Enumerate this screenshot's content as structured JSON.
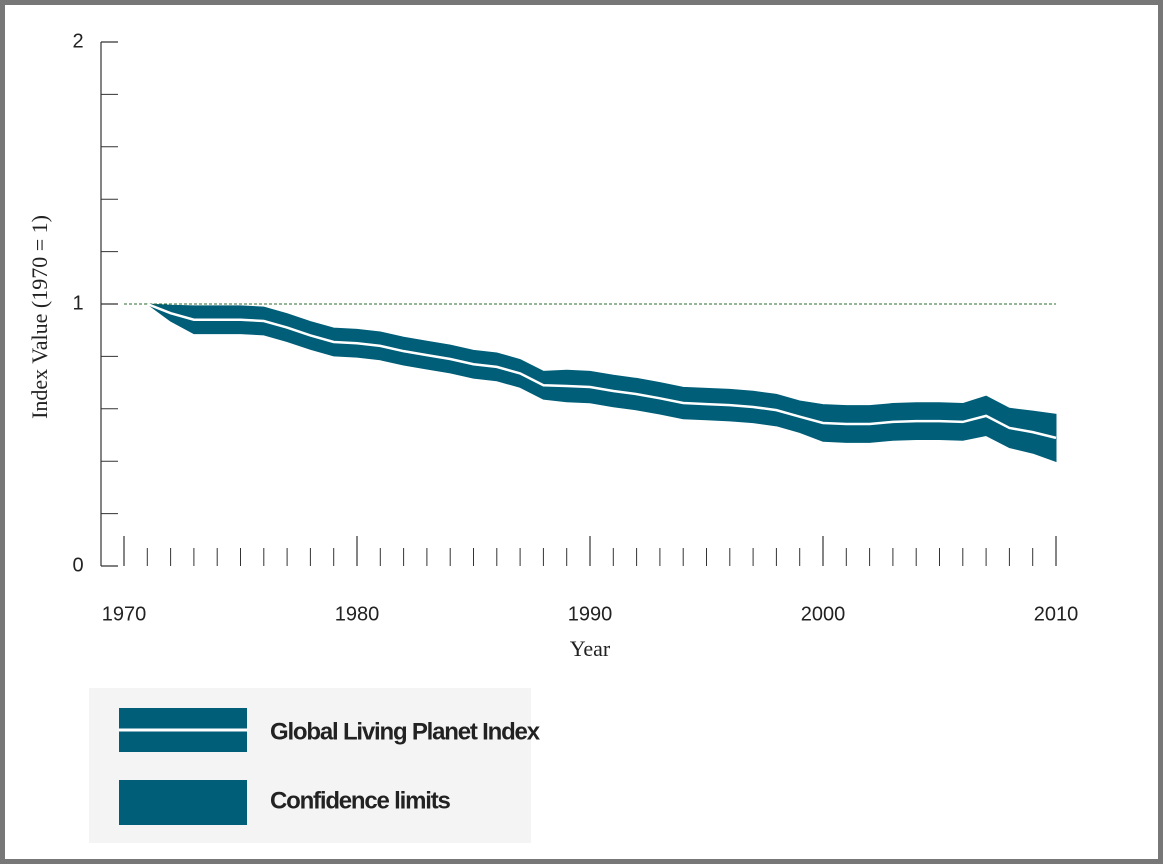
{
  "chart_data": {
    "type": "band-line",
    "x_label": "Year",
    "y_label": "Index Value (1970 = 1)",
    "x": [
      1971,
      1972,
      1973,
      1974,
      1975,
      1976,
      1977,
      1978,
      1979,
      1980,
      1981,
      1982,
      1983,
      1984,
      1985,
      1986,
      1987,
      1988,
      1989,
      1990,
      1991,
      1992,
      1993,
      1994,
      1995,
      1996,
      1997,
      1998,
      1999,
      2000,
      2001,
      2002,
      2003,
      2004,
      2005,
      2006,
      2007,
      2008,
      2009,
      2010
    ],
    "series": [
      {
        "name": "Global Living Planet Index",
        "color": "#ffffff",
        "values": [
          1.0,
          0.965,
          0.94,
          0.94,
          0.94,
          0.935,
          0.91,
          0.88,
          0.855,
          0.85,
          0.84,
          0.82,
          0.805,
          0.79,
          0.77,
          0.76,
          0.735,
          0.69,
          0.687,
          0.683,
          0.668,
          0.656,
          0.64,
          0.622,
          0.618,
          0.614,
          0.607,
          0.595,
          0.57,
          0.546,
          0.542,
          0.542,
          0.55,
          0.553,
          0.553,
          0.55,
          0.573,
          0.527,
          0.511,
          0.489
        ]
      }
    ],
    "band": {
      "name": "Confidence limits",
      "color": "#005e78",
      "upper": [
        1.0,
        0.995,
        0.993,
        0.993,
        0.993,
        0.988,
        0.963,
        0.933,
        0.908,
        0.903,
        0.893,
        0.873,
        0.858,
        0.843,
        0.823,
        0.813,
        0.788,
        0.743,
        0.747,
        0.743,
        0.728,
        0.716,
        0.7,
        0.682,
        0.678,
        0.674,
        0.667,
        0.655,
        0.63,
        0.616,
        0.612,
        0.612,
        0.62,
        0.623,
        0.623,
        0.62,
        0.648,
        0.602,
        0.591,
        0.579
      ],
      "lower": [
        1.0,
        0.935,
        0.887,
        0.887,
        0.887,
        0.882,
        0.857,
        0.827,
        0.802,
        0.797,
        0.787,
        0.767,
        0.752,
        0.737,
        0.717,
        0.707,
        0.682,
        0.637,
        0.627,
        0.623,
        0.608,
        0.596,
        0.58,
        0.562,
        0.558,
        0.554,
        0.547,
        0.535,
        0.51,
        0.476,
        0.472,
        0.472,
        0.48,
        0.483,
        0.483,
        0.48,
        0.498,
        0.452,
        0.431,
        0.399
      ]
    },
    "xlim": [
      1970,
      2010
    ],
    "xticks": [
      1970,
      1980,
      1990,
      2000,
      2010
    ],
    "x_minor_step": 1,
    "ylim": [
      0,
      2
    ],
    "yticks": [
      0,
      1,
      2
    ],
    "y_minor_step": 0.2,
    "reference_line": 1,
    "reference_color": "#2e6b2e"
  }
}
